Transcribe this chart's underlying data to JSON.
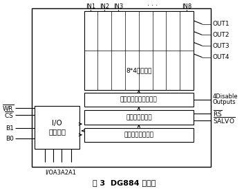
{
  "fig_title": "图 3  DG884 逻辑图",
  "bg_color": "#ffffff",
  "line_color": "#000000",
  "text_color": "#000000",
  "matrix_label": "8*4开关矩阵",
  "decode_label": "译码逻辑、开关驱动器",
  "current_latch_label": "当前事件锁定器",
  "next_latch_label": "下一个事件锁定器",
  "io_label_line1": "I/O",
  "io_label_line2": "控制逻辑",
  "in_labels": [
    "IN1",
    "IN2",
    "IN3",
    "IN8"
  ],
  "out_labels": [
    "OUT1",
    "OUT2",
    "OUT3",
    "OUT4"
  ],
  "right_labels_mid": [
    "4Disable",
    "Outputs"
  ],
  "right_labels_rs": "RS",
  "right_labels_salvo": "SALVO",
  "bottom_label": "I/OA3A2A1",
  "dots": "· · ·"
}
